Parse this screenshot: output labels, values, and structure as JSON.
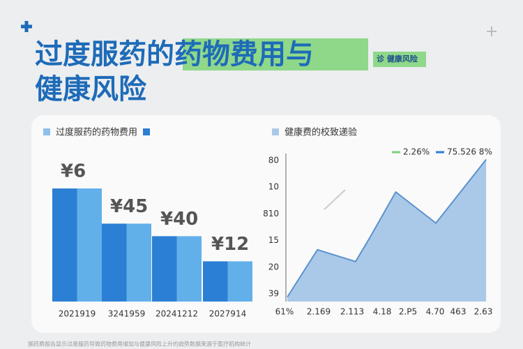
{
  "header": {
    "title_part1": "过度服药",
    "title_highlight": "的药物费用与",
    "title_line2": "健康风险",
    "badge": "诊 健康风险"
  },
  "chart_data": [
    {
      "type": "bar",
      "title": "过度服药的药物费用",
      "categories": [
        "2021919",
        "3241959",
        "20241212",
        "2027914"
      ],
      "values": [
        90,
        62,
        52,
        32
      ],
      "annotations": [
        "¥6",
        "¥45",
        "¥40",
        "¥12"
      ],
      "ylim": [
        0,
        100
      ],
      "colors": [
        "#2b7fd4",
        "#62b0ea"
      ]
    },
    {
      "type": "area",
      "title": "健康费的校致递验",
      "legend": [
        {
          "name": "2.26%",
          "color": "#7fcf7c"
        },
        {
          "name": "75.526 8%",
          "color": "#2b7fd4"
        }
      ],
      "x": [
        0,
        15,
        34,
        41,
        54,
        74,
        99
      ],
      "values": [
        3,
        35,
        27,
        43,
        74,
        53,
        96
      ],
      "xlim": [
        0,
        100
      ],
      "ylim": [
        0,
        100
      ],
      "x_labels": [
        "61%",
        "2.169",
        "2.113",
        "4.18",
        "2.P5",
        "4.70",
        "463",
        "2.63"
      ],
      "y_labels": [
        "80",
        "10",
        "810",
        "15",
        "20",
        "39"
      ],
      "color": "#aac9e9",
      "line_color": "#5b92cc"
    }
  ],
  "footer": "据药费报告显示过度服药导致药物费用增加与健康风险上升的趋势数据来源于医疗机构统计"
}
